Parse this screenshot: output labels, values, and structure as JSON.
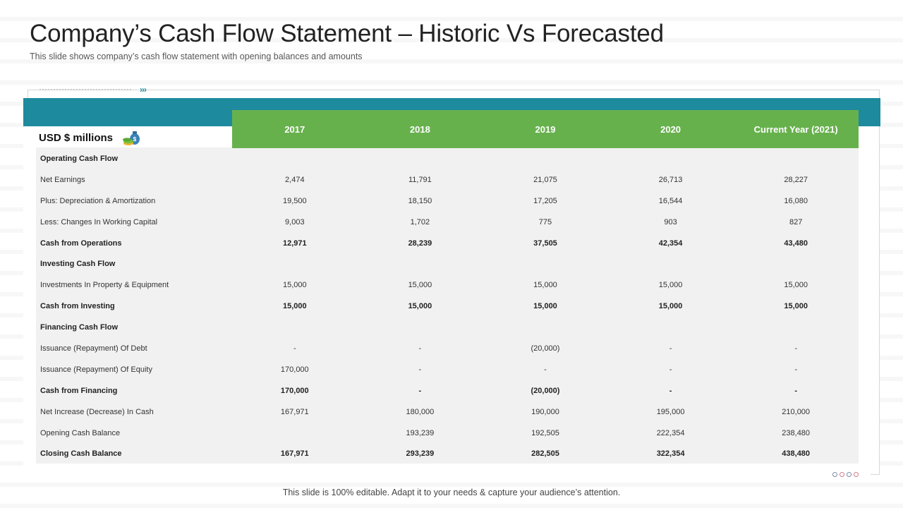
{
  "slide": {
    "title": "Company’s Cash Flow Statement – Historic Vs Forecasted",
    "subtitle": "This slide shows company’s cash flow statement with opening balances and amounts",
    "footer": "This slide is 100% editable. Adapt it to your needs & capture your audience’s attention."
  },
  "colors": {
    "teal": "#1d8a9e",
    "green": "#67b14d",
    "table_bg": "#f1f1f1"
  },
  "table": {
    "units_label": "USD $ millions",
    "units_icon": "money-bag-icon",
    "columns": [
      "2017",
      "2018",
      "2019",
      "2020",
      "Current Year (2021)"
    ],
    "rows": [
      {
        "label": "Operating Cash Flow",
        "bold": true,
        "values": [
          "",
          "",
          "",
          "",
          ""
        ]
      },
      {
        "label": "Net Earnings",
        "bold": false,
        "values": [
          "2,474",
          "11,791",
          "21,075",
          "26,713",
          "28,227"
        ]
      },
      {
        "label": "Plus: Depreciation & Amortization",
        "bold": false,
        "values": [
          "19,500",
          "18,150",
          "17,205",
          "16,544",
          "16,080"
        ]
      },
      {
        "label": "Less: Changes In Working Capital",
        "bold": false,
        "values": [
          "9,003",
          "1,702",
          "775",
          "903",
          "827"
        ]
      },
      {
        "label": "Cash from Operations",
        "bold": true,
        "values": [
          "12,971",
          "28,239",
          "37,505",
          "42,354",
          "43,480"
        ]
      },
      {
        "label": "Investing Cash Flow",
        "bold": true,
        "values": [
          "",
          "",
          "",
          "",
          ""
        ]
      },
      {
        "label": "Investments In Property & Equipment",
        "bold": false,
        "values": [
          "15,000",
          "15,000",
          "15,000",
          "15,000",
          "15,000"
        ]
      },
      {
        "label": "Cash from Investing",
        "bold": true,
        "values": [
          "15,000",
          "15,000",
          "15,000",
          "15,000",
          "15,000"
        ]
      },
      {
        "label": "Financing Cash Flow",
        "bold": true,
        "values": [
          "",
          "",
          "",
          "",
          ""
        ]
      },
      {
        "label": "Issuance (Repayment) Of Debt",
        "bold": false,
        "values": [
          "-",
          "-",
          "(20,000)",
          "-",
          "-"
        ]
      },
      {
        "label": "Issuance (Repayment) Of Equity",
        "bold": false,
        "values": [
          "170,000",
          "-",
          "-",
          "-",
          "-"
        ]
      },
      {
        "label": "Cash from Financing",
        "bold": true,
        "values": [
          "170,000",
          "-",
          "(20,000)",
          "-",
          "-"
        ]
      },
      {
        "label": "Net Increase (Decrease) In Cash",
        "bold": false,
        "values": [
          "167,971",
          "180,000",
          "190,000",
          "195,000",
          "210,000"
        ]
      },
      {
        "label": "Opening Cash Balance",
        "bold": false,
        "values": [
          "",
          "193,239",
          "192,505",
          "222,354",
          "238,480"
        ]
      },
      {
        "label": "Closing Cash Balance",
        "bold": true,
        "values": [
          "167,971",
          "293,239",
          "282,505",
          "322,354",
          "438,480"
        ]
      }
    ]
  }
}
